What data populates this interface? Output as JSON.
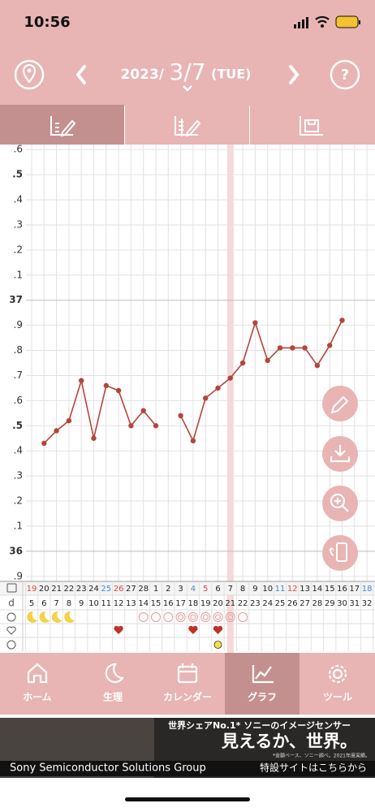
{
  "status_bar": {
    "time": "10:56"
  },
  "header": {
    "year": "2023/",
    "date": "3/7",
    "weekday": "(TUE)"
  },
  "chart": {
    "type": "line",
    "categories": [
      "19",
      "20",
      "21",
      "22",
      "23",
      "24",
      "25",
      "26",
      "27",
      "28",
      "1",
      "2",
      "3",
      "4",
      "5",
      "6",
      "7",
      "8",
      "9",
      "10",
      "11",
      "12",
      "13",
      "14",
      "15",
      "16",
      "17",
      "18"
    ],
    "cycle_days": [
      5,
      6,
      7,
      8,
      9,
      10,
      11,
      12,
      13,
      14,
      15,
      16,
      17,
      18,
      19,
      20,
      21,
      22,
      23,
      24,
      25,
      26,
      27,
      28,
      29,
      30,
      31,
      32
    ],
    "series": [
      {
        "color": "#b5443c",
        "values": [
          null,
          36.43,
          36.48,
          36.52,
          36.68,
          36.45,
          36.66,
          36.64,
          36.5,
          36.56,
          36.5,
          null,
          36.54,
          36.44,
          36.61,
          36.65,
          36.69,
          36.75,
          36.91,
          36.76,
          36.81,
          36.81,
          36.81,
          36.74,
          36.82,
          36.92,
          null,
          null
        ]
      }
    ],
    "ylim": [
      35.88,
      37.62
    ],
    "yticks": [
      {
        "value": 37.6,
        "label": ".6"
      },
      {
        "value": 37.5,
        "label": ".5"
      },
      {
        "value": 37.4,
        "label": ".4"
      },
      {
        "value": 37.3,
        "label": ".3"
      },
      {
        "value": 37.2,
        "label": ".2"
      },
      {
        "value": 37.1,
        "label": ".1"
      },
      37,
      {
        "value": 36.9,
        "label": ".9"
      },
      {
        "value": 36.8,
        "label": ".8"
      },
      {
        "value": 36.7,
        "label": ".7"
      },
      {
        "value": 36.6,
        "label": ".6"
      },
      {
        "value": 36.5,
        "label": ".5"
      },
      {
        "value": 36.4,
        "label": ".4"
      },
      {
        "value": 36.3,
        "label": ".3"
      },
      {
        "value": 36.2,
        "label": ".2"
      },
      {
        "value": 36.1,
        "label": ".1"
      },
      36,
      {
        "value": 35.9,
        "label": ".9"
      }
    ],
    "grid": true,
    "cycle_row_label": "d"
  },
  "nav": [
    "ホーム",
    "生理",
    "カレンダー",
    "グラフ",
    "ツール"
  ],
  "ad": {
    "headline": "世界シェアNo.1* ソニーのイメージセンサー",
    "slogan": "見えるか、世界。",
    "note": "*金額ベース、ソニー調べ。2021年度実績。",
    "company": "Sony Semiconductor Solutions Group",
    "link": "特設サイトはこちらから"
  }
}
